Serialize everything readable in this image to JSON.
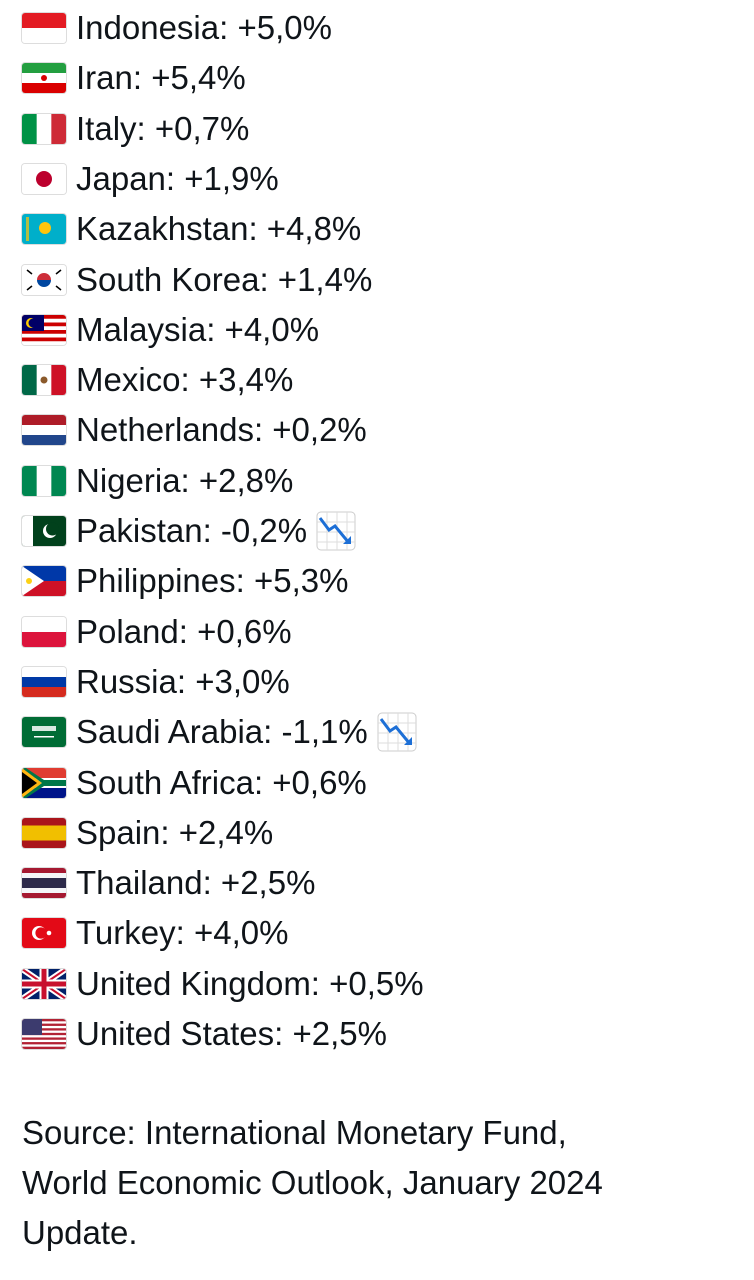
{
  "items": [
    {
      "text": "Indonesia: +5,0%"
    },
    {
      "text": "Iran: +5,4%"
    },
    {
      "text": "Italy: +0,7%"
    },
    {
      "text": "Japan: +1,9%"
    },
    {
      "text": "Kazakhstan: +4,8%"
    },
    {
      "text": "South Korea: +1,4%"
    },
    {
      "text": "Malaysia: +4,0%"
    },
    {
      "text": "Mexico: +3,4%"
    },
    {
      "text": "Netherlands: +0,2%"
    },
    {
      "text": "Nigeria: +2,8%"
    },
    {
      "text": "Pakistan: -0,2%"
    },
    {
      "text": "Philippines: +5,3%"
    },
    {
      "text": "Poland: +0,6%"
    },
    {
      "text": "Russia: +3,0%"
    },
    {
      "text": "Saudi Arabia: -1,1%"
    },
    {
      "text": "South Africa: +0,6%"
    },
    {
      "text": "Spain: +2,4%"
    },
    {
      "text": "Thailand: +2,5%"
    },
    {
      "text": "Turkey: +4,0%"
    },
    {
      "text": "United Kingdom: +0,5%"
    },
    {
      "text": "United States: +2,5%"
    }
  ],
  "source": {
    "lines": [
      "Source: International Monetary Fund,",
      "World Economic Outlook, January 2024",
      "Update."
    ]
  }
}
